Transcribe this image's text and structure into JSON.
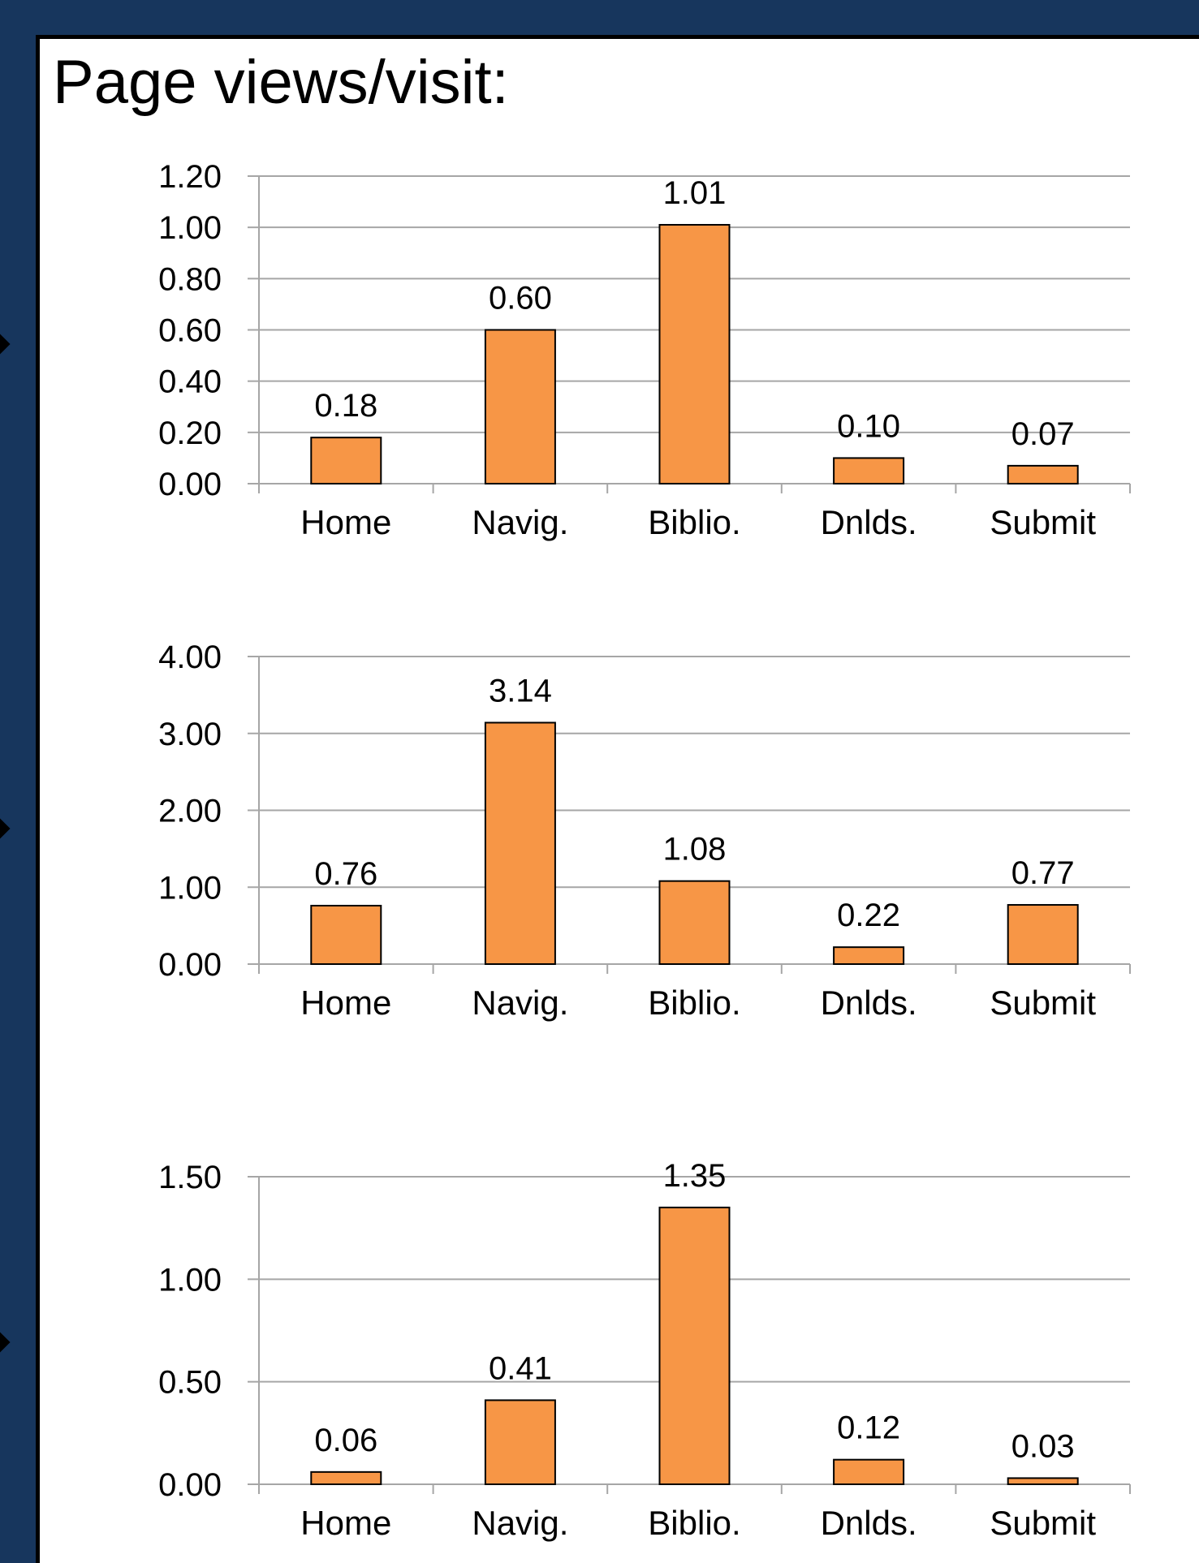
{
  "page": {
    "title": "Page views/visit:",
    "colors": {
      "background": "#17365d",
      "panel": "#ffffff",
      "bar": "#f79646",
      "bar_outline": "#000000",
      "grid": "#a6a6a6"
    }
  },
  "chart_data": [
    {
      "type": "bar",
      "categories": [
        "Home",
        "Navig.",
        "Biblio.",
        "Dnlds.",
        "Submit"
      ],
      "values": [
        0.18,
        0.6,
        1.01,
        0.1,
        0.07
      ],
      "data_labels": [
        "0.18",
        "0.60",
        "1.01",
        "0.10",
        "0.07"
      ],
      "yticks": [
        "0.00",
        "0.20",
        "0.40",
        "0.60",
        "0.80",
        "1.00",
        "1.20"
      ],
      "ylim": [
        0,
        1.2
      ],
      "grid": true,
      "legend": "none"
    },
    {
      "type": "bar",
      "categories": [
        "Home",
        "Navig.",
        "Biblio.",
        "Dnlds.",
        "Submit"
      ],
      "values": [
        0.76,
        3.14,
        1.08,
        0.22,
        0.77
      ],
      "data_labels": [
        "0.76",
        "3.14",
        "1.08",
        "0.22",
        "0.77"
      ],
      "yticks": [
        "0.00",
        "1.00",
        "2.00",
        "3.00",
        "4.00"
      ],
      "ylim": [
        0,
        4.0
      ],
      "grid": true,
      "legend": "none"
    },
    {
      "type": "bar",
      "categories": [
        "Home",
        "Navig.",
        "Biblio.",
        "Dnlds.",
        "Submit"
      ],
      "values": [
        0.06,
        0.41,
        1.35,
        0.12,
        0.03
      ],
      "data_labels": [
        "0.06",
        "0.41",
        "1.35",
        "0.12",
        "0.03"
      ],
      "yticks": [
        "0.00",
        "0.50",
        "1.00",
        "1.50"
      ],
      "ylim": [
        0,
        1.5
      ],
      "grid": true,
      "legend": "none"
    }
  ]
}
